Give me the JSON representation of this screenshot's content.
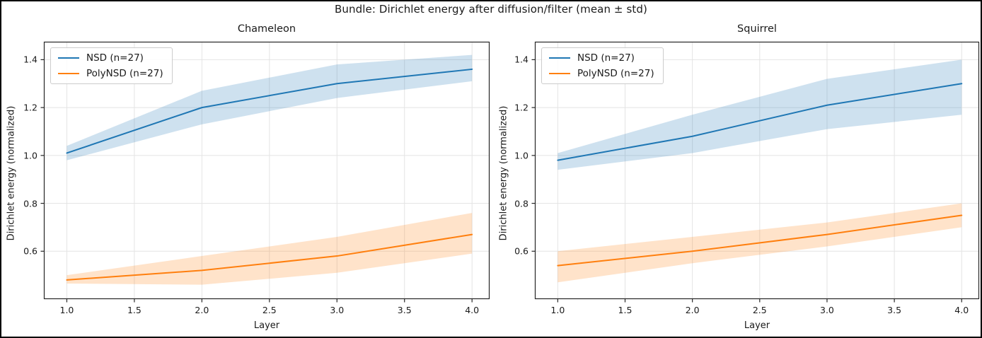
{
  "figure": {
    "title": "Bundle: Dirichlet energy after diffusion/filter (mean ± std)"
  },
  "chart_data": [
    {
      "type": "line",
      "title": "Chameleon",
      "xlabel": "Layer",
      "ylabel": "Dirichlet energy (normalized)",
      "x": [
        1,
        2,
        3,
        4
      ],
      "xticks": [
        1.0,
        1.5,
        2.0,
        2.5,
        3.0,
        3.5,
        4.0
      ],
      "yticks": [
        0.6,
        0.8,
        1.0,
        1.2,
        1.4
      ],
      "xlim": [
        0.83,
        4.13
      ],
      "ylim": [
        0.4,
        1.475
      ],
      "grid": true,
      "legend_position": "upper left",
      "band_meaning": "mean ± std",
      "series": [
        {
          "name": "NSD (n=27)",
          "color": "#1f77b4",
          "mean": [
            1.01,
            1.2,
            1.3,
            1.36
          ],
          "lower": [
            0.98,
            1.13,
            1.24,
            1.31
          ],
          "upper": [
            1.04,
            1.27,
            1.38,
            1.42
          ]
        },
        {
          "name": "PolyNSD (n=27)",
          "color": "#ff7f0e",
          "mean": [
            0.48,
            0.52,
            0.58,
            0.67
          ],
          "lower": [
            0.465,
            0.46,
            0.51,
            0.59
          ],
          "upper": [
            0.5,
            0.58,
            0.66,
            0.76
          ]
        }
      ]
    },
    {
      "type": "line",
      "title": "Squirrel",
      "xlabel": "Layer",
      "ylabel": "Dirichlet energy (normalized)",
      "x": [
        1,
        2,
        3,
        4
      ],
      "xticks": [
        1.0,
        1.5,
        2.0,
        2.5,
        3.0,
        3.5,
        4.0
      ],
      "yticks": [
        0.6,
        0.8,
        1.0,
        1.2,
        1.4
      ],
      "xlim": [
        0.83,
        4.13
      ],
      "ylim": [
        0.4,
        1.475
      ],
      "grid": true,
      "legend_position": "upper left",
      "band_meaning": "mean ± std",
      "series": [
        {
          "name": "NSD (n=27)",
          "color": "#1f77b4",
          "mean": [
            0.98,
            1.08,
            1.21,
            1.3
          ],
          "lower": [
            0.94,
            1.01,
            1.11,
            1.17
          ],
          "upper": [
            1.01,
            1.17,
            1.32,
            1.4
          ]
        },
        {
          "name": "PolyNSD (n=27)",
          "color": "#ff7f0e",
          "mean": [
            0.54,
            0.6,
            0.67,
            0.75
          ],
          "lower": [
            0.47,
            0.55,
            0.62,
            0.7
          ],
          "upper": [
            0.6,
            0.66,
            0.72,
            0.8
          ]
        }
      ]
    }
  ],
  "style": {
    "grid_color": "#e4e4e4",
    "frame_color": "#262626",
    "band_opacity": 0.22
  }
}
